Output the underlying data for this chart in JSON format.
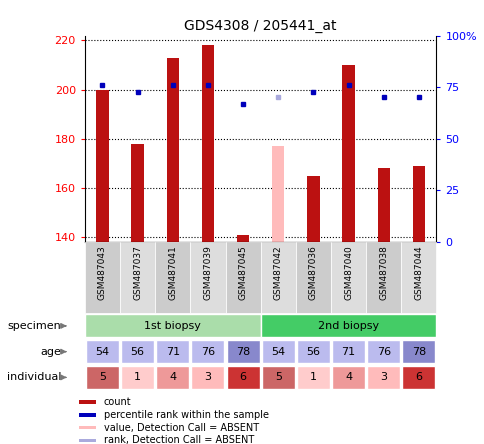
{
  "title": "GDS4308 / 205441_at",
  "samples": [
    "GSM487043",
    "GSM487037",
    "GSM487041",
    "GSM487039",
    "GSM487045",
    "GSM487042",
    "GSM487036",
    "GSM487040",
    "GSM487038",
    "GSM487044"
  ],
  "bar_values": [
    200,
    178,
    213,
    218,
    141,
    null,
    165,
    210,
    168,
    169
  ],
  "absent_bar_values": [
    null,
    null,
    null,
    null,
    null,
    177,
    null,
    null,
    null,
    null
  ],
  "percentile_values": [
    202,
    199,
    202,
    202,
    194,
    null,
    199,
    202,
    197,
    197
  ],
  "absent_rank_values": [
    null,
    null,
    null,
    null,
    null,
    197,
    null,
    null,
    null,
    null
  ],
  "bar_color": "#bb1111",
  "absent_bar_color": "#ffbbbb",
  "dot_color": "#0000bb",
  "absent_dot_color": "#aaaadd",
  "ylim": [
    138,
    222
  ],
  "yticks": [
    140,
    160,
    180,
    200,
    220
  ],
  "y2ticks_pct": [
    0,
    25,
    50,
    75,
    100
  ],
  "y2labels": [
    "0",
    "25",
    "50",
    "75",
    "100%"
  ],
  "specimen_groups": [
    {
      "label": "1st biopsy",
      "start": 0,
      "end": 5,
      "color": "#aaddaa"
    },
    {
      "label": "2nd biopsy",
      "start": 5,
      "end": 10,
      "color": "#44cc66"
    }
  ],
  "age_values": [
    54,
    56,
    71,
    76,
    78,
    54,
    56,
    71,
    76,
    78
  ],
  "age_colors": [
    "#bbbbee",
    "#bbbbee",
    "#bbbbee",
    "#bbbbee",
    "#8888cc",
    "#bbbbee",
    "#bbbbee",
    "#bbbbee",
    "#bbbbee",
    "#8888cc"
  ],
  "individual_values": [
    5,
    1,
    4,
    3,
    6,
    5,
    1,
    4,
    3,
    6
  ],
  "individual_colors": [
    "#cc6666",
    "#ffcccc",
    "#ee9999",
    "#ffbbbb",
    "#cc3333",
    "#cc6666",
    "#ffcccc",
    "#ee9999",
    "#ffbbbb",
    "#cc3333"
  ],
  "legend_items": [
    {
      "color": "#bb1111",
      "label": "count"
    },
    {
      "color": "#0000bb",
      "label": "percentile rank within the sample"
    },
    {
      "color": "#ffbbbb",
      "label": "value, Detection Call = ABSENT"
    },
    {
      "color": "#aaaadd",
      "label": "rank, Detection Call = ABSENT"
    }
  ],
  "row_labels": [
    "specimen",
    "age",
    "individual"
  ],
  "bar_bottom": 138,
  "bar_width": 0.35
}
